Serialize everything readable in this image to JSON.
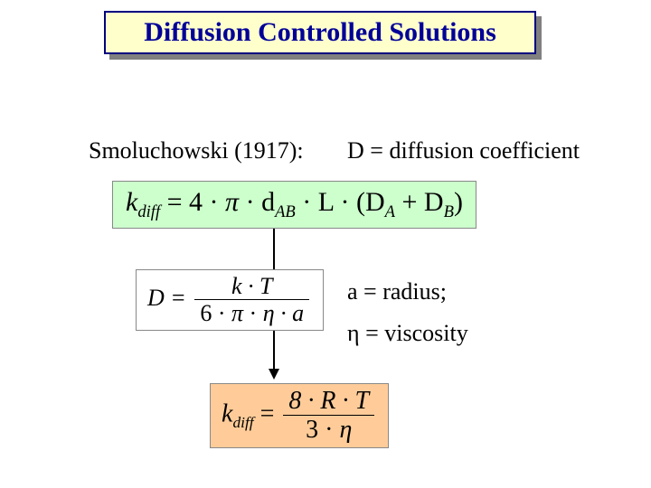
{
  "title": "Diffusion Controlled Solutions",
  "attribution": "Smoluchowski (1917):",
  "def_D": "D = diffusion coefficient",
  "def_a": "a = radius;",
  "def_eta_sym": "η",
  "def_eta_rest": " = viscosity",
  "eq1": {
    "lhs_k": "k",
    "lhs_sub": "diff",
    "rhs_prefix": " = 4 · ",
    "pi": "π",
    "mid": " · d",
    "d_sub": "AB",
    "mid2": " · L · (D",
    "DA_sub": "A",
    "plus": " + D",
    "DB_sub": "B",
    "close": ")"
  },
  "eq2": {
    "lhs": "D = ",
    "num": "k · T",
    "den_prefix": "6 · ",
    "den_pi": "π",
    "den_mid": " · ",
    "den_eta": "η",
    "den_suffix": " · a"
  },
  "eq3": {
    "lhs_k": "k",
    "lhs_sub": "diff",
    "eq": " = ",
    "num": "8 · R · T",
    "den_prefix": "3 · ",
    "den_eta": "η"
  },
  "colors": {
    "title_bg": "#ffffcc",
    "title_border": "#000080",
    "title_text": "#000099",
    "shadow": "#808080",
    "eq1_bg": "#ccffcc",
    "eq3_bg": "#ffcc99",
    "body_text": "#000000"
  }
}
